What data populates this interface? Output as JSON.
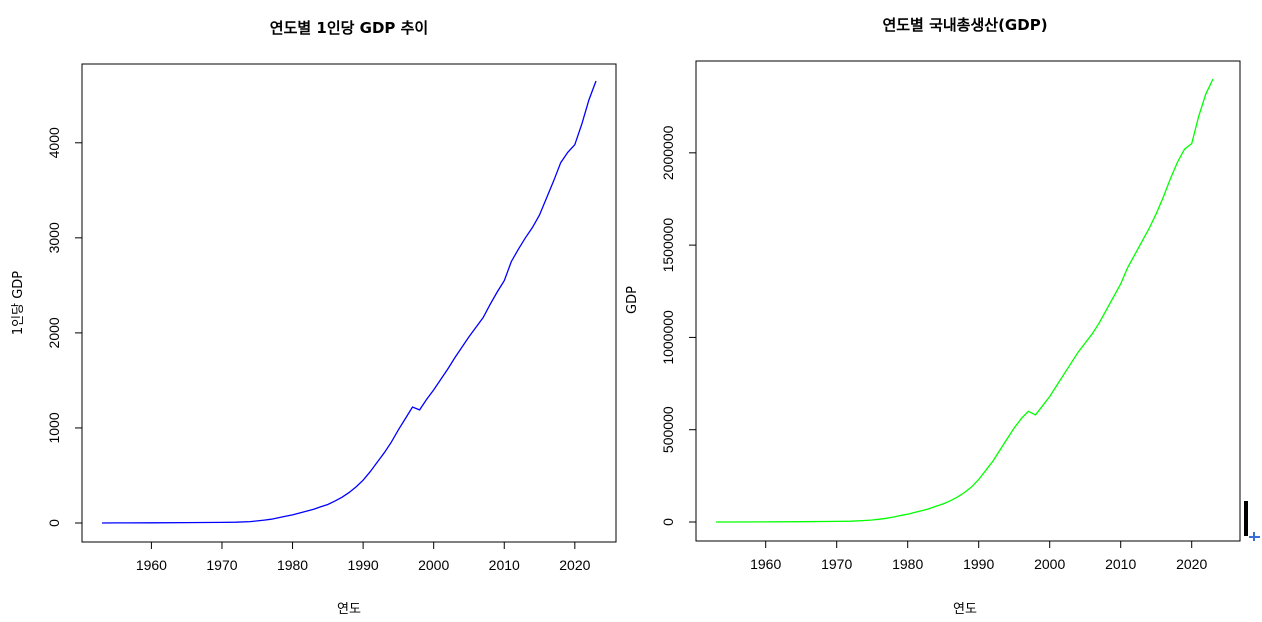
{
  "chart_data": [
    {
      "type": "line",
      "title": "연도별 1인당 GDP 추이",
      "xlabel": "연도",
      "ylabel": "1인당 GDP",
      "color": "#0000ff",
      "xlim": [
        1953,
        2023
      ],
      "ylim": [
        0,
        4650
      ],
      "xticks": [
        1960,
        1970,
        1980,
        1990,
        2000,
        2010,
        2020
      ],
      "yticks": [
        0,
        1000,
        2000,
        3000,
        4000
      ],
      "x": [
        1953,
        1955,
        1960,
        1965,
        1970,
        1972,
        1974,
        1975,
        1976,
        1977,
        1978,
        1979,
        1980,
        1981,
        1982,
        1983,
        1984,
        1985,
        1986,
        1987,
        1988,
        1989,
        1990,
        1991,
        1992,
        1993,
        1994,
        1995,
        1996,
        1997,
        1998,
        1999,
        2000,
        2001,
        2002,
        2003,
        2004,
        2005,
        2006,
        2007,
        2008,
        2009,
        2010,
        2011,
        2012,
        2013,
        2014,
        2015,
        2016,
        2017,
        2018,
        2019,
        2020,
        2021,
        2022,
        2023
      ],
      "values": [
        0,
        1,
        2,
        4,
        6,
        8,
        15,
        22,
        30,
        40,
        55,
        70,
        85,
        105,
        125,
        145,
        170,
        195,
        230,
        270,
        320,
        380,
        450,
        540,
        640,
        740,
        850,
        980,
        1100,
        1220,
        1190,
        1300,
        1400,
        1510,
        1620,
        1740,
        1850,
        1960,
        2060,
        2160,
        2300,
        2430,
        2550,
        2750,
        2880,
        3000,
        3110,
        3240,
        3420,
        3600,
        3790,
        3900,
        3980,
        4200,
        4450,
        4650
      ]
    },
    {
      "type": "line",
      "title": "연도별 국내총생산(GDP)",
      "xlabel": "연도",
      "ylabel": "GDP",
      "color": "#00ff00",
      "xlim": [
        1953,
        2023
      ],
      "ylim": [
        0,
        2400000
      ],
      "xticks": [
        1960,
        1970,
        1980,
        1990,
        2000,
        2010,
        2020
      ],
      "yticks": [
        0,
        500000,
        1000000,
        1500000,
        2000000
      ],
      "x": [
        1953,
        1955,
        1960,
        1965,
        1970,
        1972,
        1974,
        1975,
        1976,
        1977,
        1978,
        1979,
        1980,
        1981,
        1982,
        1983,
        1984,
        1985,
        1986,
        1987,
        1988,
        1989,
        1990,
        1991,
        1992,
        1993,
        1994,
        1995,
        1996,
        1997,
        1998,
        1999,
        2000,
        2001,
        2002,
        2003,
        2004,
        2005,
        2006,
        2007,
        2008,
        2009,
        2010,
        2011,
        2012,
        2013,
        2014,
        2015,
        2016,
        2017,
        2018,
        2019,
        2020,
        2021,
        2022,
        2023
      ],
      "values": [
        0,
        0,
        500,
        1500,
        3000,
        4500,
        8000,
        11000,
        15000,
        20000,
        27000,
        35000,
        42000,
        52000,
        62000,
        72000,
        85000,
        98000,
        115000,
        135000,
        160000,
        190000,
        230000,
        280000,
        330000,
        390000,
        450000,
        510000,
        560000,
        600000,
        580000,
        630000,
        680000,
        740000,
        800000,
        860000,
        920000,
        970000,
        1020000,
        1080000,
        1150000,
        1220000,
        1290000,
        1380000,
        1450000,
        1520000,
        1590000,
        1670000,
        1760000,
        1860000,
        1950000,
        2020000,
        2050000,
        2200000,
        2320000,
        2400000
      ]
    }
  ]
}
